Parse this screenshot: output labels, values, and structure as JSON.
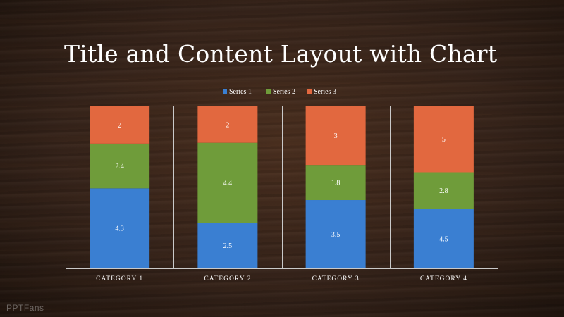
{
  "slide": {
    "title": "Title and Content Layout with Chart",
    "watermark": "PPTFans"
  },
  "colors": {
    "series_1": "#3a7fd2",
    "series_2": "#6f9c3a",
    "series_3": "#e2683f",
    "divider": "#c9c9c9",
    "text": "#ffffff"
  },
  "chart_data": {
    "type": "bar",
    "stacked": true,
    "categories": [
      "CATEGORY 1",
      "CATEGORY 2",
      "CATEGORY 3",
      "CATEGORY 4"
    ],
    "series": [
      {
        "name": "Series 1",
        "values": [
          4.3,
          2.5,
          3.5,
          4.5
        ]
      },
      {
        "name": "Series 2",
        "values": [
          2.4,
          4.4,
          1.8,
          2.8
        ]
      },
      {
        "name": "Series 3",
        "values": [
          2,
          2,
          3,
          5
        ]
      }
    ],
    "title": "",
    "xlabel": "",
    "ylabel": "",
    "ylim": [
      0,
      100
    ],
    "normalized_percent": true,
    "data_labels": true,
    "grid": false,
    "legend": "top-center"
  }
}
